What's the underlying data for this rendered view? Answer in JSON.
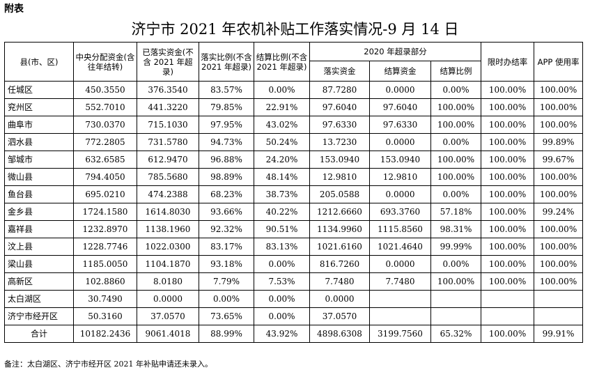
{
  "attachment_label": "附表",
  "title": "济宁市 2021 年农机补贴工作落实情况-9 月 14 日",
  "headers": {
    "county": "县(市、区)",
    "central_alloc": "中央分配资金(含往年结转)",
    "implemented": "已落实资金(不含 2021 年超录)",
    "impl_ratio": "落实比例(不含 2021 年超录)",
    "settle_ratio": "结算比例(不含 2021 年超录)",
    "excess_group": "2020 年超录部分",
    "excess_impl": "落实资金",
    "excess_settle": "结算资金",
    "excess_ratio": "结算比例",
    "time_limit": "限时办结率",
    "app_rate": "APP 使用率"
  },
  "rows": [
    [
      "任城区",
      "450.3550",
      "376.3540",
      "83.57%",
      "0.00%",
      "87.7280",
      "0.0000",
      "0.00%",
      "100.00%",
      "100.00%"
    ],
    [
      "兖州区",
      "552.7010",
      "441.3220",
      "79.85%",
      "22.91%",
      "97.6040",
      "97.6040",
      "100.00%",
      "100.00%",
      "100.00%"
    ],
    [
      "曲阜市",
      "730.0370",
      "715.1030",
      "97.95%",
      "43.02%",
      "97.6330",
      "97.6330",
      "100.00%",
      "100.00%",
      "100.00%"
    ],
    [
      "泗水县",
      "772.2805",
      "731.5780",
      "94.73%",
      "50.24%",
      "13.7230",
      "0.0000",
      "0.00%",
      "100.00%",
      "99.89%"
    ],
    [
      "邹城市",
      "632.6585",
      "612.9470",
      "96.88%",
      "24.20%",
      "153.0940",
      "153.0940",
      "100.00%",
      "100.00%",
      "99.67%"
    ],
    [
      "微山县",
      "794.4050",
      "785.5680",
      "98.89%",
      "48.14%",
      "12.9810",
      "12.9810",
      "100.00%",
      "100.00%",
      "100.00%"
    ],
    [
      "鱼台县",
      "695.0210",
      "474.2388",
      "68.23%",
      "38.73%",
      "205.0588",
      "0.0000",
      "0.00%",
      "100.00%",
      "100.00%"
    ],
    [
      "金乡县",
      "1724.1580",
      "1614.8030",
      "93.66%",
      "40.22%",
      "1212.6660",
      "693.3760",
      "57.18%",
      "100.00%",
      "99.24%"
    ],
    [
      "嘉祥县",
      "1232.8970",
      "1138.1960",
      "92.32%",
      "90.51%",
      "1134.9960",
      "1115.8560",
      "98.31%",
      "100.00%",
      "100.00%"
    ],
    [
      "汶上县",
      "1228.7746",
      "1022.0300",
      "83.17%",
      "83.13%",
      "1021.6160",
      "1021.4640",
      "99.99%",
      "100.00%",
      "100.00%"
    ],
    [
      "梁山县",
      "1185.0050",
      "1104.1870",
      "93.18%",
      "0.00%",
      "816.7260",
      "0.0000",
      "0.00%",
      "100.00%",
      "100.00%"
    ],
    [
      "高新区",
      "102.8860",
      "8.0180",
      "7.79%",
      "7.53%",
      "7.7480",
      "7.7480",
      "100.00%",
      "100.00%",
      "100.00%"
    ],
    [
      "太白湖区",
      "30.7490",
      "0.0000",
      "0.00%",
      "0.00%",
      "0.0000",
      "",
      "",
      "",
      ""
    ],
    [
      "济宁市经开区",
      "50.3160",
      "37.0570",
      "73.65%",
      "0.00%",
      "37.0570",
      "",
      "",
      "",
      ""
    ],
    [
      "合计",
      "10182.2436",
      "9061.4018",
      "88.99%",
      "43.92%",
      "4898.6308",
      "3199.7560",
      "65.32%",
      "100.00%",
      "99.91%"
    ]
  ],
  "note": "备注：太白湖区、济宁市经开区 2021 年补贴申请还未录入。"
}
